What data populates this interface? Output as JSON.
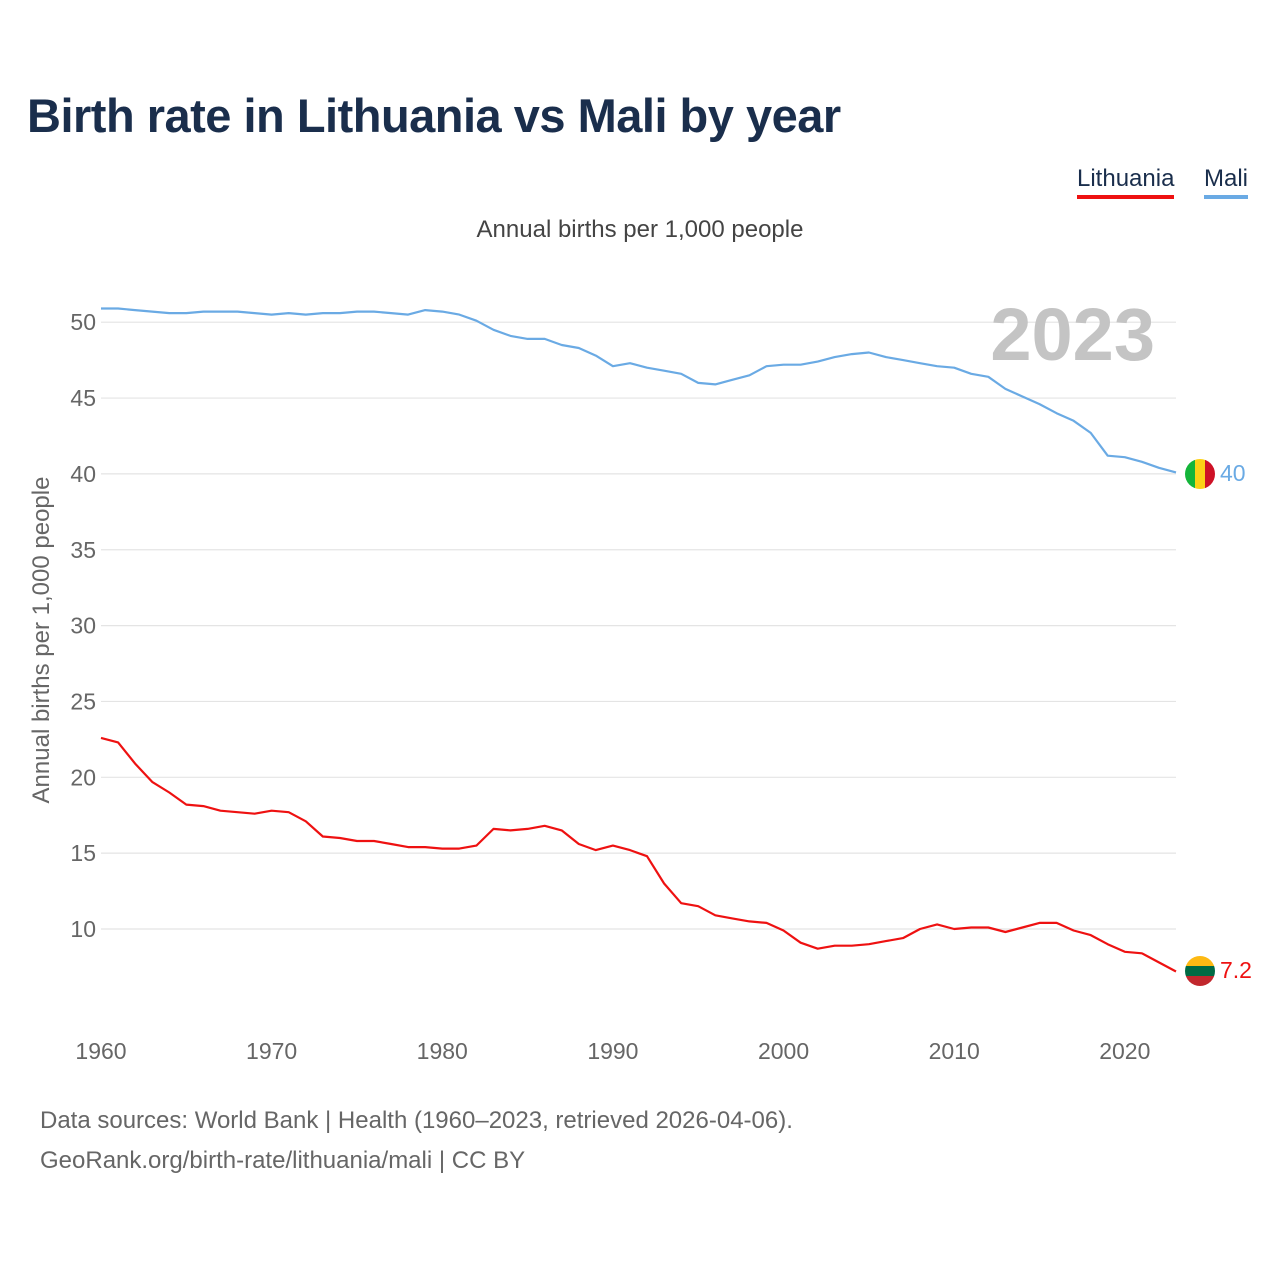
{
  "title": "Birth rate in Lithuania vs Mali by year",
  "legend": [
    {
      "label": "Lithuania",
      "color": "#ee1111"
    },
    {
      "label": "Mali",
      "color": "#6aaae4"
    }
  ],
  "footer": {
    "line1": "Data sources: World Bank | Health (1960–2023, retrieved 2026-04-06).",
    "line2": "GeoRank.org/birth-rate/lithuania/mali | CC BY"
  },
  "chart_data": {
    "type": "line",
    "title": "Birth rate in Lithuania vs Mali by year",
    "subtitle": "Annual births per 1,000 people",
    "xlabel": "",
    "ylabel": "Annual births per 1,000 people",
    "year_watermark": "2023",
    "xlim": [
      1960,
      2023
    ],
    "ylim": [
      5,
      52
    ],
    "xticks": [
      1960,
      1970,
      1980,
      1990,
      2000,
      2010,
      2020
    ],
    "yticks": [
      10,
      15,
      20,
      25,
      30,
      35,
      40,
      45,
      50
    ],
    "grid": true,
    "legend_position": "top-right",
    "x": [
      1960,
      1961,
      1962,
      1963,
      1964,
      1965,
      1966,
      1967,
      1968,
      1969,
      1970,
      1971,
      1972,
      1973,
      1974,
      1975,
      1976,
      1977,
      1978,
      1979,
      1980,
      1981,
      1982,
      1983,
      1984,
      1985,
      1986,
      1987,
      1988,
      1989,
      1990,
      1991,
      1992,
      1993,
      1994,
      1995,
      1996,
      1997,
      1998,
      1999,
      2000,
      2001,
      2002,
      2003,
      2004,
      2005,
      2006,
      2007,
      2008,
      2009,
      2010,
      2011,
      2012,
      2013,
      2014,
      2015,
      2016,
      2017,
      2018,
      2019,
      2020,
      2021,
      2022,
      2023
    ],
    "series": [
      {
        "name": "Lithuania",
        "color": "#ee1111",
        "end_label": "7.2",
        "values": [
          22.6,
          22.3,
          20.9,
          19.7,
          19.0,
          18.2,
          18.1,
          17.8,
          17.7,
          17.6,
          17.8,
          17.7,
          17.1,
          16.1,
          16.0,
          15.8,
          15.8,
          15.6,
          15.4,
          15.4,
          15.3,
          15.3,
          15.5,
          16.6,
          16.5,
          16.6,
          16.8,
          16.5,
          15.6,
          15.2,
          15.5,
          15.2,
          14.8,
          13.0,
          11.7,
          11.5,
          10.9,
          10.7,
          10.5,
          10.4,
          9.9,
          9.1,
          8.7,
          8.9,
          8.9,
          9.0,
          9.2,
          9.4,
          10.0,
          10.3,
          10.0,
          10.1,
          10.1,
          9.8,
          10.1,
          10.4,
          10.4,
          9.9,
          9.6,
          9.0,
          8.5,
          8.4,
          7.8,
          7.2
        ]
      },
      {
        "name": "Mali",
        "color": "#6aaae4",
        "end_label": "40",
        "values": [
          50.9,
          50.9,
          50.8,
          50.7,
          50.6,
          50.6,
          50.7,
          50.7,
          50.7,
          50.6,
          50.5,
          50.6,
          50.5,
          50.6,
          50.6,
          50.7,
          50.7,
          50.6,
          50.5,
          50.8,
          50.7,
          50.5,
          50.1,
          49.5,
          49.1,
          48.9,
          48.9,
          48.5,
          48.3,
          47.8,
          47.1,
          47.3,
          47.0,
          46.8,
          46.6,
          46.0,
          45.9,
          46.2,
          46.5,
          47.1,
          47.2,
          47.2,
          47.4,
          47.7,
          47.9,
          48.0,
          47.7,
          47.5,
          47.3,
          47.1,
          47.0,
          46.6,
          46.4,
          45.6,
          45.1,
          44.6,
          44.0,
          43.5,
          42.7,
          41.2,
          41.1,
          40.8,
          40.4,
          40.1
        ]
      }
    ]
  }
}
